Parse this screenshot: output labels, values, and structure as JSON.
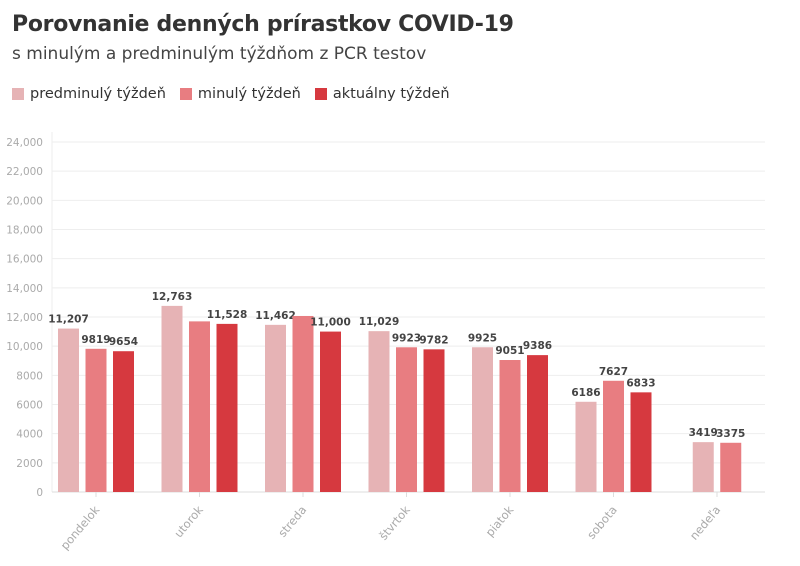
{
  "chart_data": {
    "type": "bar",
    "title": "Porovnanie denných prírastkov COVID-19",
    "subtitle": "s minulým a predminulým týždňom z PCR testov",
    "categories": [
      "pondelok",
      "utorok",
      "streda",
      "štvrtok",
      "piatok",
      "sobota",
      "nedeľa"
    ],
    "series": [
      {
        "name": "predminulý týždeň",
        "color": "#e6b3b5",
        "values": [
          11207,
          12763,
          11462,
          11029,
          9925,
          6186,
          3419
        ],
        "labels": [
          "11,207",
          "12,763",
          "11,462",
          "11,029",
          "9925",
          "6186",
          "3419"
        ]
      },
      {
        "name": "minulý týždeň",
        "color": "#e87d81",
        "values": [
          9819,
          11700,
          12070,
          9923,
          9051,
          7627,
          3375
        ],
        "labels": [
          "9819",
          null,
          null,
          "9923",
          "9051",
          "7627",
          "3375"
        ]
      },
      {
        "name": "aktuálny týždeň",
        "color": "#d6393f",
        "values": [
          9654,
          11528,
          11000,
          9782,
          9386,
          6833,
          null
        ],
        "labels": [
          "9654",
          "11,528",
          "11,000",
          "9782",
          "9386",
          "6833",
          null
        ]
      }
    ],
    "ylim": [
      0,
      24000
    ],
    "yticks": [
      0,
      2000,
      4000,
      6000,
      8000,
      10000,
      12000,
      14000,
      16000,
      18000,
      20000,
      22000,
      24000
    ],
    "ytick_labels": [
      "0",
      "2000",
      "4000",
      "6000",
      "8000",
      "10,000",
      "12,000",
      "14,000",
      "16,000",
      "18,000",
      "20,000",
      "22,000",
      "24,000"
    ],
    "grid": true,
    "legend": "top-left",
    "xlabel": "",
    "ylabel": ""
  }
}
